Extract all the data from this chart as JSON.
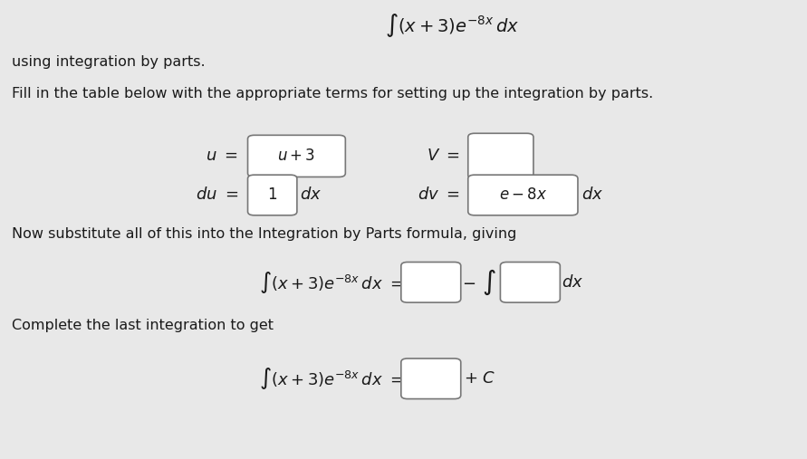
{
  "bg_color": "#e8e8e8",
  "text_color": "#1a1a1a",
  "box_border_color": "#777777",
  "title_math": "\\int (x+3)e^{-8x}\\, dx",
  "line1": "using integration by parts.",
  "line2": "Fill in the table below with the appropriate terms for setting up the integration by parts.",
  "line3": "Now substitute all of this into the Integration by Parts formula, giving",
  "line4": "Complete the last integration to get"
}
